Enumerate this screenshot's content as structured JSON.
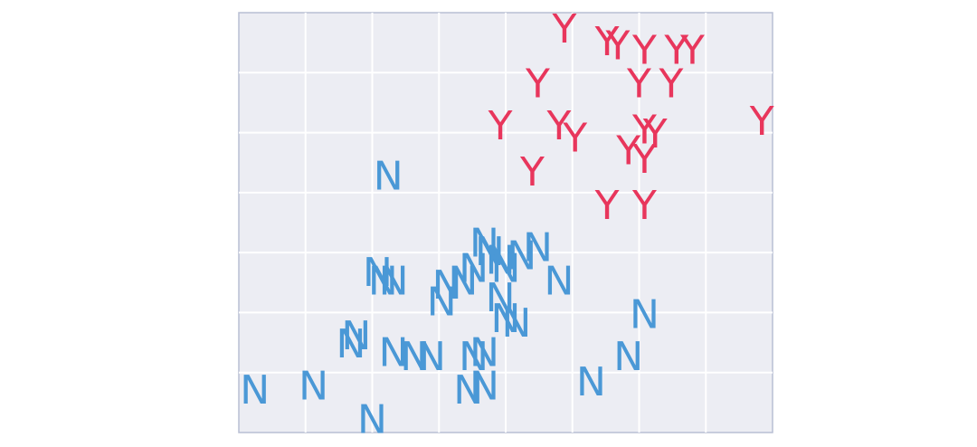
{
  "chart_data": {
    "type": "scatter",
    "title": "",
    "xlabel": "",
    "ylabel": "",
    "xlim": [
      0,
      10
    ],
    "ylim": [
      0,
      10
    ],
    "grid": true,
    "legend": "none",
    "colors": {
      "background": "#ecedf3",
      "grid": "#ffffff",
      "frame": "#b8bfd4",
      "Y": "#e8365c",
      "N": "#4a98d6"
    },
    "series": [
      {
        "marker": "Y",
        "points": [
          {
            "x": 6.1,
            "y": 9.6,
            "label": "Y"
          },
          {
            "x": 6.9,
            "y": 9.3,
            "label": "Y"
          },
          {
            "x": 7.1,
            "y": 9.2,
            "label": "Y"
          },
          {
            "x": 7.6,
            "y": 9.1,
            "label": "Y"
          },
          {
            "x": 8.2,
            "y": 9.1,
            "label": "Y"
          },
          {
            "x": 8.5,
            "y": 9.1,
            "label": "Y"
          },
          {
            "x": 5.6,
            "y": 8.3,
            "label": "Y"
          },
          {
            "x": 7.5,
            "y": 8.3,
            "label": "Y"
          },
          {
            "x": 8.1,
            "y": 8.3,
            "label": "Y"
          },
          {
            "x": 4.9,
            "y": 7.3,
            "label": "Y"
          },
          {
            "x": 6.0,
            "y": 7.3,
            "label": "Y"
          },
          {
            "x": 6.3,
            "y": 7.0,
            "label": "Y"
          },
          {
            "x": 7.6,
            "y": 7.2,
            "label": "Y"
          },
          {
            "x": 7.8,
            "y": 7.1,
            "label": "Y"
          },
          {
            "x": 7.3,
            "y": 6.7,
            "label": "Y"
          },
          {
            "x": 7.6,
            "y": 6.5,
            "label": "Y"
          },
          {
            "x": 9.8,
            "y": 7.4,
            "label": "Y"
          },
          {
            "x": 5.5,
            "y": 6.2,
            "label": "Y"
          },
          {
            "x": 6.9,
            "y": 5.4,
            "label": "Y"
          },
          {
            "x": 7.6,
            "y": 5.4,
            "label": "Y"
          }
        ]
      },
      {
        "marker": "N",
        "points": [
          {
            "x": 2.8,
            "y": 6.1,
            "label": "N"
          },
          {
            "x": 4.6,
            "y": 4.5,
            "label": "N"
          },
          {
            "x": 4.7,
            "y": 4.3,
            "label": "N"
          },
          {
            "x": 4.9,
            "y": 4.1,
            "label": "N"
          },
          {
            "x": 5.3,
            "y": 4.2,
            "label": "N"
          },
          {
            "x": 5.0,
            "y": 3.9,
            "label": "N"
          },
          {
            "x": 5.6,
            "y": 4.4,
            "label": "N"
          },
          {
            "x": 2.6,
            "y": 3.8,
            "label": "N"
          },
          {
            "x": 2.7,
            "y": 3.6,
            "label": "N"
          },
          {
            "x": 2.9,
            "y": 3.6,
            "label": "N"
          },
          {
            "x": 3.9,
            "y": 3.5,
            "label": "N"
          },
          {
            "x": 4.2,
            "y": 3.6,
            "label": "N"
          },
          {
            "x": 4.4,
            "y": 3.9,
            "label": "N"
          },
          {
            "x": 6.0,
            "y": 3.6,
            "label": "N"
          },
          {
            "x": 3.8,
            "y": 3.1,
            "label": "N"
          },
          {
            "x": 4.9,
            "y": 3.2,
            "label": "N"
          },
          {
            "x": 5.0,
            "y": 2.7,
            "label": "N"
          },
          {
            "x": 5.2,
            "y": 2.6,
            "label": "N"
          },
          {
            "x": 2.1,
            "y": 2.1,
            "label": "N"
          },
          {
            "x": 2.2,
            "y": 2.3,
            "label": "N"
          },
          {
            "x": 2.9,
            "y": 1.9,
            "label": "N"
          },
          {
            "x": 3.3,
            "y": 1.8,
            "label": "N"
          },
          {
            "x": 3.6,
            "y": 1.8,
            "label": "N"
          },
          {
            "x": 4.4,
            "y": 1.8,
            "label": "N"
          },
          {
            "x": 4.6,
            "y": 1.9,
            "label": "N"
          },
          {
            "x": 7.6,
            "y": 2.8,
            "label": "N"
          },
          {
            "x": 7.3,
            "y": 1.8,
            "label": "N"
          },
          {
            "x": 6.6,
            "y": 1.2,
            "label": "N"
          },
          {
            "x": 0.3,
            "y": 1.0,
            "label": "N"
          },
          {
            "x": 1.4,
            "y": 1.1,
            "label": "N"
          },
          {
            "x": 4.3,
            "y": 1.0,
            "label": "N"
          },
          {
            "x": 4.6,
            "y": 1.1,
            "label": "N"
          },
          {
            "x": 2.5,
            "y": 0.3,
            "label": "N"
          }
        ]
      }
    ]
  }
}
